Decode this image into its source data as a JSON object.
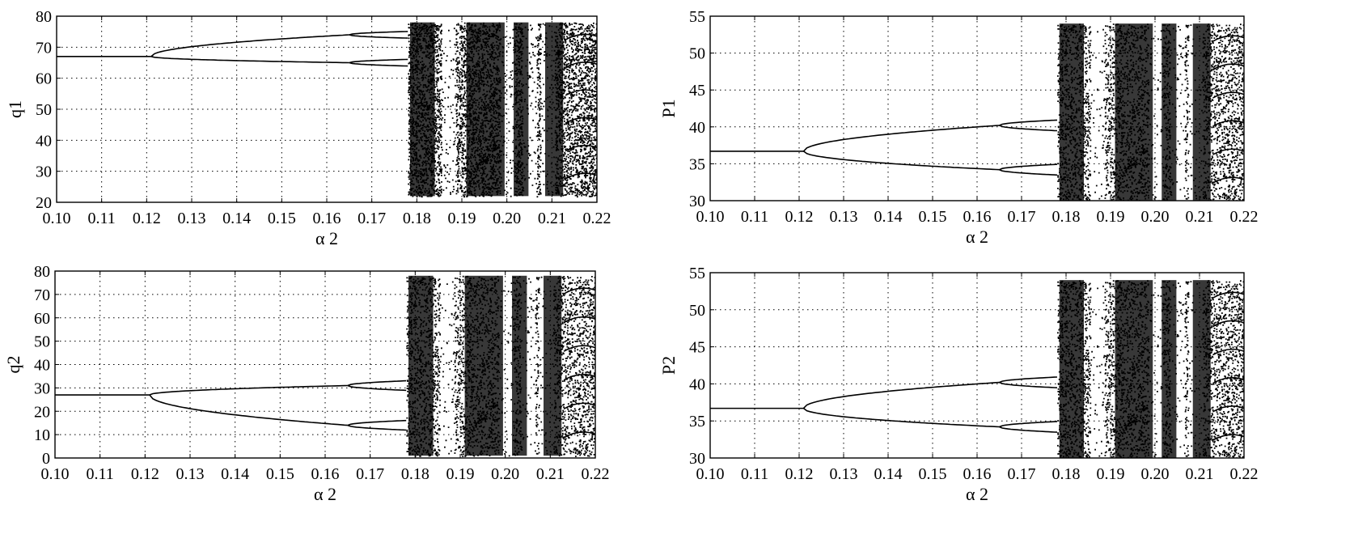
{
  "chart_data": [
    {
      "type": "scatter",
      "panel": "top-left",
      "title": "",
      "xlabel": "α 2",
      "ylabel": "q1",
      "xlim": [
        0.1,
        0.22
      ],
      "ylim": [
        20,
        80
      ],
      "xticks": [
        "0.10",
        "0.11",
        "0.12",
        "0.13",
        "0.14",
        "0.15",
        "0.16",
        "0.17",
        "0.18",
        "0.19",
        "0.20",
        "0.21",
        "0.22"
      ],
      "yticks": [
        "20",
        "30",
        "40",
        "50",
        "60",
        "70",
        "80"
      ],
      "grid": true,
      "fixed_point": {
        "x": [
          0.1,
          0.121
        ],
        "y": 67
      },
      "period2": [
        {
          "x": 0.121,
          "y": 67
        },
        {
          "x": 0.165,
          "y_upper": 74,
          "y_lower": 65
        }
      ],
      "chaos_onset": 0.178,
      "chaos_range": [
        22,
        78
      ],
      "periodic_windows": [
        0.187,
        0.2,
        0.205,
        0.209
      ]
    },
    {
      "type": "scatter",
      "panel": "top-right",
      "title": "",
      "xlabel": "α 2",
      "ylabel": "P1",
      "xlim": [
        0.1,
        0.22
      ],
      "ylim": [
        30,
        55
      ],
      "xticks": [
        "0.10",
        "0.11",
        "0.12",
        "0.13",
        "0.14",
        "0.15",
        "0.16",
        "0.17",
        "0.18",
        "0.19",
        "0.20",
        "0.21",
        "0.22"
      ],
      "yticks": [
        "30",
        "35",
        "40",
        "45",
        "50",
        "55"
      ],
      "grid": true,
      "fixed_point": {
        "x": [
          0.1,
          0.121
        ],
        "y": 36.7
      },
      "period2": [
        {
          "x": 0.121,
          "y": 36.7
        },
        {
          "x": 0.165,
          "y_upper": 40.2,
          "y_lower": 34.2
        }
      ],
      "chaos_onset": 0.178,
      "chaos_range": [
        30,
        54
      ],
      "periodic_windows": [
        0.187,
        0.2,
        0.205,
        0.209
      ]
    },
    {
      "type": "scatter",
      "panel": "bottom-left",
      "title": "",
      "xlabel": "α 2",
      "ylabel": "q2",
      "xlim": [
        0.1,
        0.22
      ],
      "ylim": [
        0,
        80
      ],
      "xticks": [
        "0.10",
        "0.11",
        "0.12",
        "0.13",
        "0.14",
        "0.15",
        "0.16",
        "0.17",
        "0.18",
        "0.19",
        "0.20",
        "0.21",
        "0.22"
      ],
      "yticks": [
        "0",
        "10",
        "20",
        "30",
        "40",
        "50",
        "60",
        "70",
        "80"
      ],
      "grid": true,
      "fixed_point": {
        "x": [
          0.1,
          0.121
        ],
        "y": 27
      },
      "period2": [
        {
          "x": 0.121,
          "y": 27
        },
        {
          "x": 0.165,
          "y_upper": 31,
          "y_lower": 14
        }
      ],
      "chaos_onset": 0.178,
      "chaos_range": [
        1,
        78
      ],
      "periodic_windows": [
        0.187,
        0.2,
        0.205,
        0.209
      ]
    },
    {
      "type": "scatter",
      "panel": "bottom-right",
      "title": "",
      "xlabel": "α 2",
      "ylabel": "P2",
      "xlim": [
        0.1,
        0.22
      ],
      "ylim": [
        30,
        55
      ],
      "xticks": [
        "0.10",
        "0.11",
        "0.12",
        "0.13",
        "0.14",
        "0.15",
        "0.16",
        "0.17",
        "0.18",
        "0.19",
        "0.20",
        "0.21",
        "0.22"
      ],
      "yticks": [
        "30",
        "35",
        "40",
        "45",
        "50",
        "55"
      ],
      "grid": true,
      "fixed_point": {
        "x": [
          0.1,
          0.121
        ],
        "y": 36.7
      },
      "period2": [
        {
          "x": 0.121,
          "y": 36.7
        },
        {
          "x": 0.165,
          "y_upper": 40.2,
          "y_lower": 34.2
        }
      ],
      "chaos_onset": 0.178,
      "chaos_range": [
        30,
        54
      ],
      "periodic_windows": [
        0.187,
        0.2,
        0.205,
        0.209
      ]
    }
  ]
}
